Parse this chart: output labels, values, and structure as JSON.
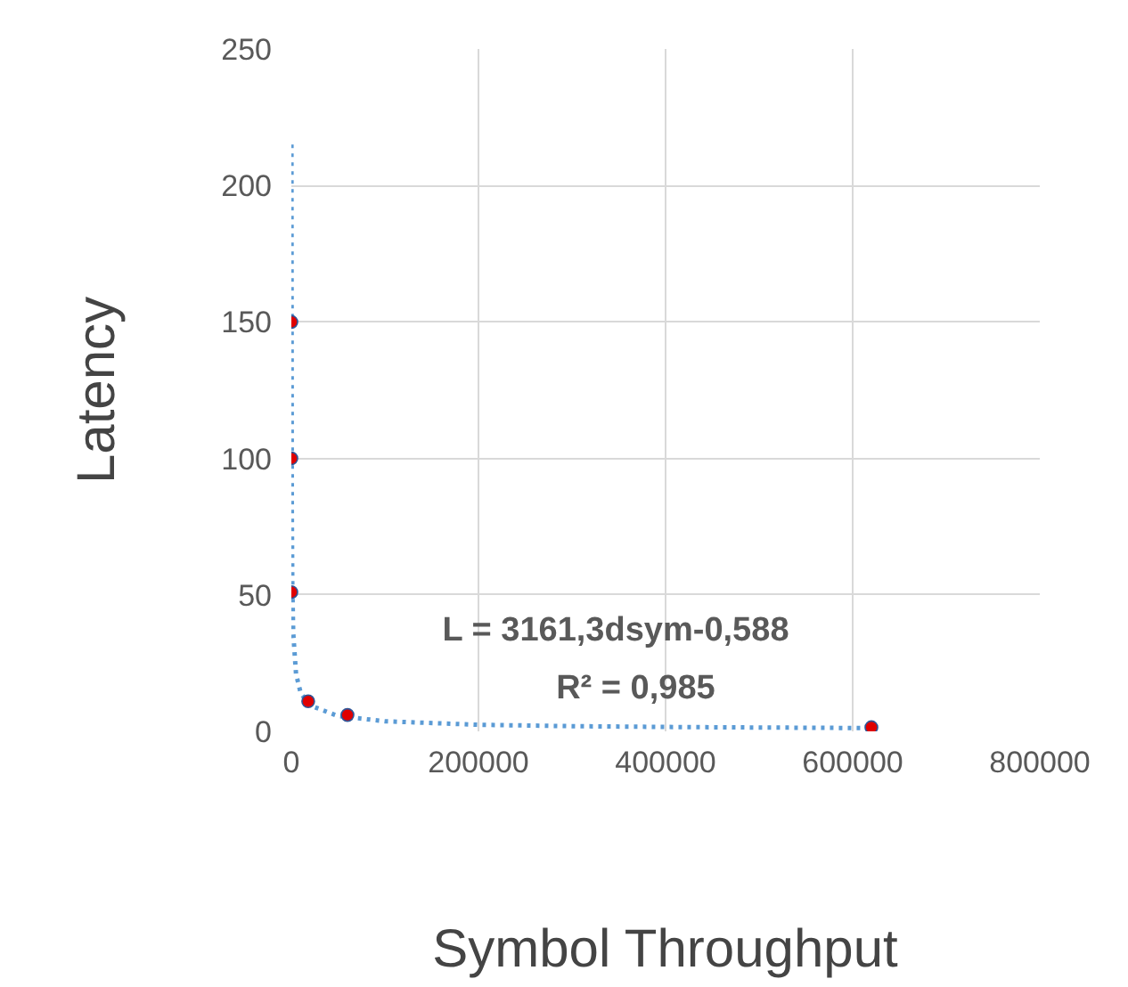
{
  "chart_data": {
    "type": "scatter",
    "xlabel": "Symbol Throughput",
    "ylabel": "Latency",
    "xlim": [
      0,
      800000
    ],
    "ylim": [
      0,
      250
    ],
    "xticks": [
      0,
      200000,
      400000,
      600000,
      800000
    ],
    "yticks": [
      0,
      50,
      100,
      150,
      200,
      250
    ],
    "grid": true,
    "series": [
      {
        "marker": "circle",
        "color": "#e00000",
        "x": [
          0,
          0,
          0,
          18000,
          60000,
          620000
        ],
        "values": [
          150,
          100,
          51,
          11,
          6,
          1.5
        ]
      },
      {
        "type": "line",
        "color": "#5b9bd5",
        "line_style": "dotted",
        "x": [
          100,
          500,
          1000,
          2000,
          5000,
          10000,
          20000,
          50000,
          100000,
          200000,
          300000,
          400000,
          500000,
          620000
        ],
        "values": [
          215,
          82,
          54,
          36,
          21,
          14,
          9.5,
          5.6,
          3.7,
          2.4,
          1.9,
          1.6,
          1.4,
          1.2
        ]
      }
    ],
    "annotations": [
      "L  = 3161,3dsym-0,588",
      "R² = 0,985"
    ]
  }
}
